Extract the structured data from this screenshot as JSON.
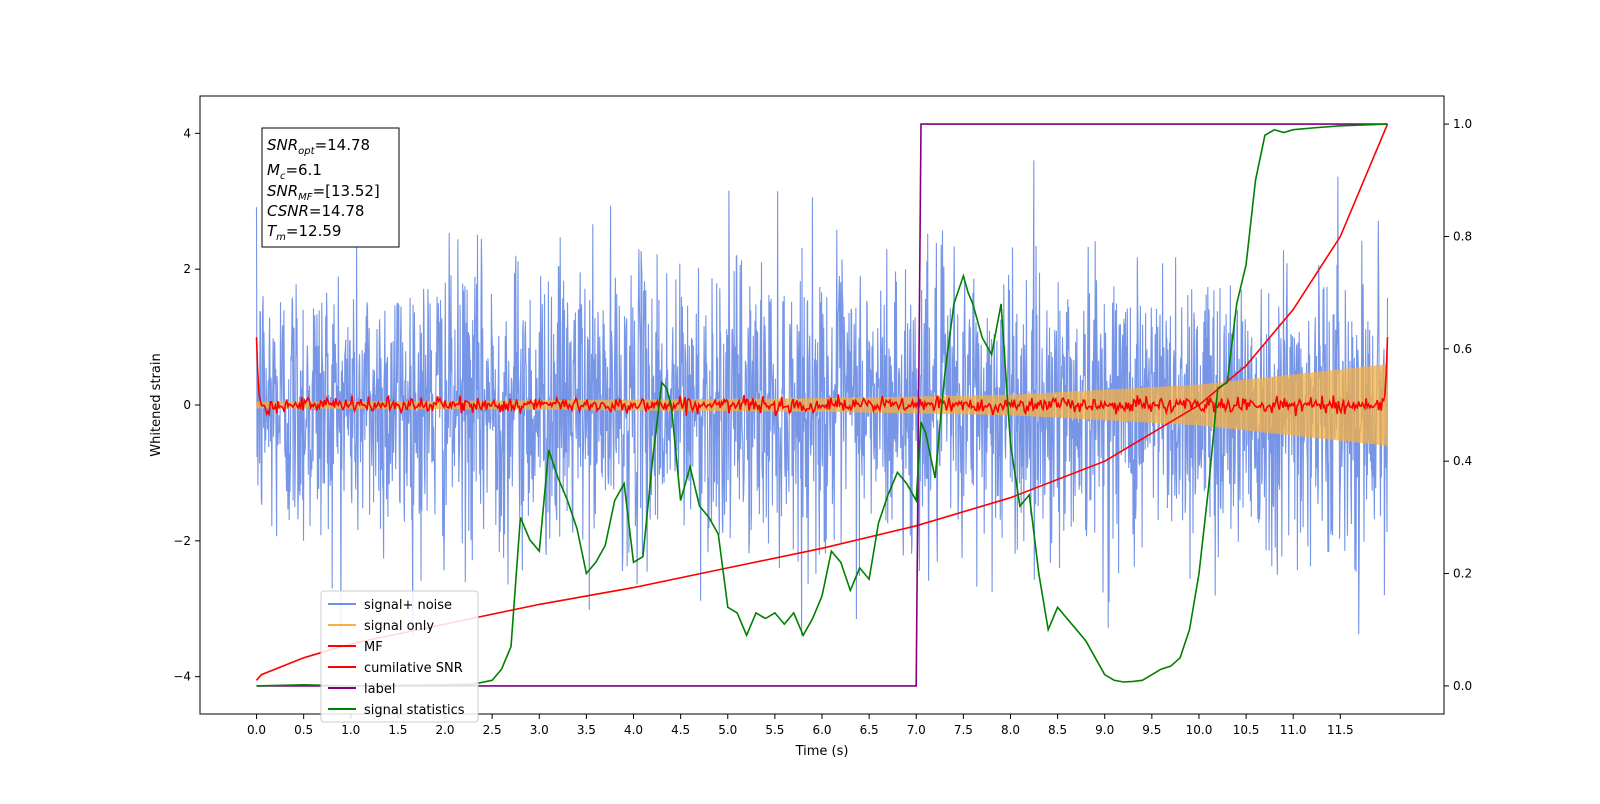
{
  "chart_data": {
    "type": "line",
    "xlabel": "Time (s)",
    "ylabel": "Whitened strain",
    "xlim": [
      -0.6,
      12.6
    ],
    "ylim": [
      -4.55,
      4.55
    ],
    "y2lim": [
      -0.05,
      1.05
    ],
    "x_ticks": [
      "0.0",
      "0.5",
      "1.0",
      "1.5",
      "2.0",
      "2.5",
      "3.0",
      "3.5",
      "4.0",
      "4.5",
      "5.0",
      "5.5",
      "6.0",
      "6.5",
      "7.0",
      "7.5",
      "8.0",
      "8.5",
      "9.0",
      "9.5",
      "10.0",
      "10.5",
      "11.0",
      "11.5"
    ],
    "y_ticks": [
      "-4",
      "-2",
      "0",
      "2",
      "4"
    ],
    "y2_ticks": [
      "0.0",
      "0.2",
      "0.4",
      "0.6",
      "0.8",
      "1.0"
    ],
    "grid": false,
    "legend_placement": "lower-left",
    "annotation": {
      "snr_opt": {
        "sym": "SNR",
        "sub": "opt",
        "value": "=14.78"
      },
      "mc": {
        "sym": "M",
        "sub": "c",
        "value": "=6.1"
      },
      "snr_mf": {
        "sym": "SNR",
        "sub": "MF",
        "value": "=[13.52]"
      },
      "csnr": {
        "sym": "CSNR",
        "sub": "",
        "value": "=14.78"
      },
      "tm": {
        "sym": "T",
        "sub": "m",
        "value": "=12.59"
      }
    },
    "duration": 12,
    "series": [
      {
        "name": "signal+ noise",
        "color": "#6f8fe6",
        "axis": "left",
        "kind": "noise",
        "amplitude_range": [
          -3.4,
          4.1
        ]
      },
      {
        "name": "signal only",
        "color": "#f5b041",
        "axis": "left",
        "kind": "chirp",
        "envelope": {
          "x": [
            0,
            2,
            4,
            6,
            8,
            10,
            12
          ],
          "y": [
            0.05,
            0.06,
            0.08,
            0.1,
            0.15,
            0.3,
            0.6
          ]
        }
      },
      {
        "name": "MF",
        "color": "#ff0000",
        "axis": "left",
        "kind": "mf",
        "points": {
          "x": [
            0.0,
            0.02,
            0.05,
            11.95,
            11.98,
            12.0
          ],
          "y": [
            1.0,
            0.2,
            0.0,
            0.0,
            0.2,
            1.0
          ]
        }
      },
      {
        "name": "cumilative SNR",
        "color": "#ff0000",
        "axis": "right",
        "x": [
          0.0,
          0.05,
          0.5,
          1.0,
          2.0,
          3.0,
          4.0,
          5.0,
          6.0,
          7.0,
          8.0,
          9.0,
          10.0,
          10.5,
          11.0,
          11.5,
          12.0
        ],
        "y": [
          0.01,
          0.02,
          0.05,
          0.075,
          0.11,
          0.145,
          0.175,
          0.21,
          0.245,
          0.285,
          0.335,
          0.4,
          0.5,
          0.57,
          0.67,
          0.8,
          1.0
        ]
      },
      {
        "name": "label",
        "color": "#800080",
        "axis": "right",
        "x": [
          0.0,
          7.0,
          7.05,
          12.0
        ],
        "y": [
          0.0,
          0.0,
          1.0,
          1.0
        ]
      },
      {
        "name": "signal statistics",
        "color": "#008000",
        "axis": "right",
        "x": [
          0.0,
          0.5,
          1.0,
          1.5,
          2.0,
          2.3,
          2.5,
          2.6,
          2.7,
          2.8,
          2.9,
          3.0,
          3.1,
          3.2,
          3.3,
          3.4,
          3.5,
          3.6,
          3.7,
          3.8,
          3.9,
          4.0,
          4.1,
          4.2,
          4.3,
          4.35,
          4.4,
          4.5,
          4.6,
          4.7,
          4.8,
          4.9,
          5.0,
          5.1,
          5.2,
          5.3,
          5.4,
          5.5,
          5.6,
          5.7,
          5.8,
          5.9,
          6.0,
          6.1,
          6.2,
          6.3,
          6.4,
          6.5,
          6.6,
          6.7,
          6.8,
          6.9,
          7.0,
          7.05,
          7.1,
          7.2,
          7.3,
          7.4,
          7.5,
          7.55,
          7.6,
          7.7,
          7.8,
          7.9,
          8.0,
          8.1,
          8.2,
          8.3,
          8.4,
          8.5,
          8.6,
          8.7,
          8.8,
          8.9,
          9.0,
          9.1,
          9.2,
          9.3,
          9.4,
          9.5,
          9.6,
          9.7,
          9.8,
          9.9,
          10.0,
          10.1,
          10.2,
          10.3,
          10.4,
          10.5,
          10.6,
          10.7,
          10.8,
          10.9,
          11.0,
          11.2,
          11.5,
          12.0
        ],
        "y": [
          0.0,
          0.002,
          0.0,
          0.001,
          0.002,
          0.003,
          0.01,
          0.03,
          0.07,
          0.3,
          0.26,
          0.24,
          0.42,
          0.37,
          0.33,
          0.28,
          0.2,
          0.22,
          0.25,
          0.33,
          0.36,
          0.22,
          0.23,
          0.4,
          0.54,
          0.53,
          0.5,
          0.33,
          0.39,
          0.32,
          0.3,
          0.27,
          0.14,
          0.13,
          0.09,
          0.13,
          0.12,
          0.13,
          0.11,
          0.13,
          0.09,
          0.12,
          0.16,
          0.24,
          0.22,
          0.17,
          0.21,
          0.19,
          0.29,
          0.34,
          0.38,
          0.36,
          0.33,
          0.47,
          0.45,
          0.37,
          0.55,
          0.68,
          0.73,
          0.7,
          0.68,
          0.62,
          0.59,
          0.68,
          0.43,
          0.32,
          0.34,
          0.2,
          0.1,
          0.14,
          0.12,
          0.1,
          0.08,
          0.05,
          0.02,
          0.01,
          0.007,
          0.008,
          0.01,
          0.02,
          0.03,
          0.035,
          0.05,
          0.1,
          0.2,
          0.35,
          0.53,
          0.54,
          0.68,
          0.75,
          0.9,
          0.98,
          0.99,
          0.985,
          0.99,
          0.993,
          0.997,
          1.0
        ]
      }
    ]
  }
}
